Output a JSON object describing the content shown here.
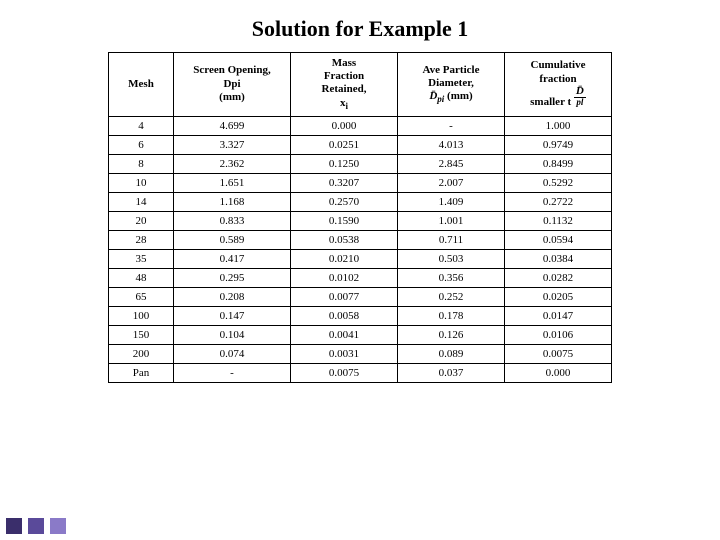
{
  "title": "Solution for Example 1",
  "columns": {
    "c1": "Mesh",
    "c2": "Screen Opening,\nDpi\n(mm)",
    "c3": "Mass\nFraction\nRetained,\nx",
    "c3sub": "i",
    "c4a": "Ave Particle\nDiameter,",
    "c4b": " (mm)",
    "c4sym": "D̄",
    "c4sub": "pi",
    "c5a": "Cumulative\nfraction\nsmaller t",
    "c5symTop": "D̄",
    "c5symBot": "pl"
  },
  "rows": [
    {
      "m": "4",
      "d": "4.699",
      "x": "0.000",
      "a": "-",
      "c": "1.000"
    },
    {
      "m": "6",
      "d": "3.327",
      "x": "0.0251",
      "a": "4.013",
      "c": "0.9749"
    },
    {
      "m": "8",
      "d": "2.362",
      "x": "0.1250",
      "a": "2.845",
      "c": "0.8499"
    },
    {
      "m": "10",
      "d": "1.651",
      "x": "0.3207",
      "a": "2.007",
      "c": "0.5292"
    },
    {
      "m": "14",
      "d": "1.168",
      "x": "0.2570",
      "a": "1.409",
      "c": "0.2722"
    },
    {
      "m": "20",
      "d": "0.833",
      "x": "0.1590",
      "a": "1.001",
      "c": "0.1132"
    },
    {
      "m": "28",
      "d": "0.589",
      "x": "0.0538",
      "a": "0.711",
      "c": "0.0594"
    },
    {
      "m": "35",
      "d": "0.417",
      "x": "0.0210",
      "a": "0.503",
      "c": "0.0384"
    },
    {
      "m": "48",
      "d": "0.295",
      "x": "0.0102",
      "a": "0.356",
      "c": "0.0282"
    },
    {
      "m": "65",
      "d": "0.208",
      "x": "0.0077",
      "a": "0.252",
      "c": "0.0205"
    },
    {
      "m": "100",
      "d": "0.147",
      "x": "0.0058",
      "a": "0.178",
      "c": "0.0147"
    },
    {
      "m": "150",
      "d": "0.104",
      "x": "0.0041",
      "a": "0.126",
      "c": "0.0106"
    },
    {
      "m": "200",
      "d": "0.074",
      "x": "0.0031",
      "a": "0.089",
      "c": "0.0075"
    },
    {
      "m": "Pan",
      "d": "-",
      "x": "0.0075",
      "a": "0.037",
      "c": "0.000"
    }
  ],
  "accentColors": [
    "#3a2e6b",
    "#5a4a9a",
    "#8a7ac8"
  ]
}
